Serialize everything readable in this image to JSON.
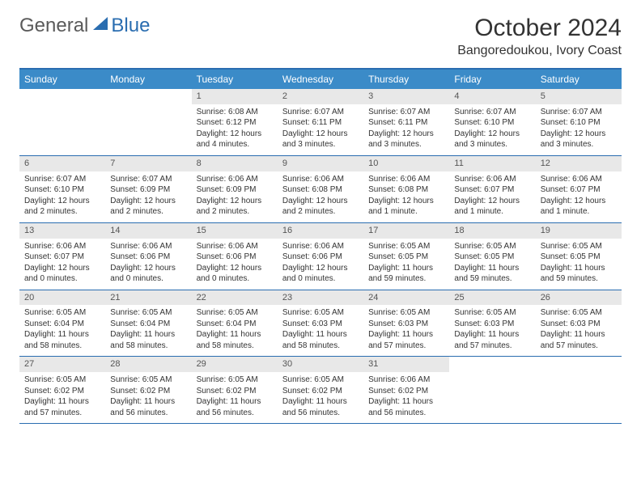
{
  "logo": {
    "text1": "General",
    "text2": "Blue"
  },
  "title": "October 2024",
  "location": "Bangoredoukou, Ivory Coast",
  "colors": {
    "header_bg": "#3b8bc8",
    "header_border": "#2a6db0",
    "daynum_bg": "#e8e8e8",
    "text": "#333333"
  },
  "day_names": [
    "Sunday",
    "Monday",
    "Tuesday",
    "Wednesday",
    "Thursday",
    "Friday",
    "Saturday"
  ],
  "weeks": [
    [
      {
        "n": "",
        "empty": true
      },
      {
        "n": "",
        "empty": true
      },
      {
        "n": "1",
        "sr": "Sunrise: 6:08 AM",
        "ss": "Sunset: 6:12 PM",
        "dl": "Daylight: 12 hours and 4 minutes."
      },
      {
        "n": "2",
        "sr": "Sunrise: 6:07 AM",
        "ss": "Sunset: 6:11 PM",
        "dl": "Daylight: 12 hours and 3 minutes."
      },
      {
        "n": "3",
        "sr": "Sunrise: 6:07 AM",
        "ss": "Sunset: 6:11 PM",
        "dl": "Daylight: 12 hours and 3 minutes."
      },
      {
        "n": "4",
        "sr": "Sunrise: 6:07 AM",
        "ss": "Sunset: 6:10 PM",
        "dl": "Daylight: 12 hours and 3 minutes."
      },
      {
        "n": "5",
        "sr": "Sunrise: 6:07 AM",
        "ss": "Sunset: 6:10 PM",
        "dl": "Daylight: 12 hours and 3 minutes."
      }
    ],
    [
      {
        "n": "6",
        "sr": "Sunrise: 6:07 AM",
        "ss": "Sunset: 6:10 PM",
        "dl": "Daylight: 12 hours and 2 minutes."
      },
      {
        "n": "7",
        "sr": "Sunrise: 6:07 AM",
        "ss": "Sunset: 6:09 PM",
        "dl": "Daylight: 12 hours and 2 minutes."
      },
      {
        "n": "8",
        "sr": "Sunrise: 6:06 AM",
        "ss": "Sunset: 6:09 PM",
        "dl": "Daylight: 12 hours and 2 minutes."
      },
      {
        "n": "9",
        "sr": "Sunrise: 6:06 AM",
        "ss": "Sunset: 6:08 PM",
        "dl": "Daylight: 12 hours and 2 minutes."
      },
      {
        "n": "10",
        "sr": "Sunrise: 6:06 AM",
        "ss": "Sunset: 6:08 PM",
        "dl": "Daylight: 12 hours and 1 minute."
      },
      {
        "n": "11",
        "sr": "Sunrise: 6:06 AM",
        "ss": "Sunset: 6:07 PM",
        "dl": "Daylight: 12 hours and 1 minute."
      },
      {
        "n": "12",
        "sr": "Sunrise: 6:06 AM",
        "ss": "Sunset: 6:07 PM",
        "dl": "Daylight: 12 hours and 1 minute."
      }
    ],
    [
      {
        "n": "13",
        "sr": "Sunrise: 6:06 AM",
        "ss": "Sunset: 6:07 PM",
        "dl": "Daylight: 12 hours and 0 minutes."
      },
      {
        "n": "14",
        "sr": "Sunrise: 6:06 AM",
        "ss": "Sunset: 6:06 PM",
        "dl": "Daylight: 12 hours and 0 minutes."
      },
      {
        "n": "15",
        "sr": "Sunrise: 6:06 AM",
        "ss": "Sunset: 6:06 PM",
        "dl": "Daylight: 12 hours and 0 minutes."
      },
      {
        "n": "16",
        "sr": "Sunrise: 6:06 AM",
        "ss": "Sunset: 6:06 PM",
        "dl": "Daylight: 12 hours and 0 minutes."
      },
      {
        "n": "17",
        "sr": "Sunrise: 6:05 AM",
        "ss": "Sunset: 6:05 PM",
        "dl": "Daylight: 11 hours and 59 minutes."
      },
      {
        "n": "18",
        "sr": "Sunrise: 6:05 AM",
        "ss": "Sunset: 6:05 PM",
        "dl": "Daylight: 11 hours and 59 minutes."
      },
      {
        "n": "19",
        "sr": "Sunrise: 6:05 AM",
        "ss": "Sunset: 6:05 PM",
        "dl": "Daylight: 11 hours and 59 minutes."
      }
    ],
    [
      {
        "n": "20",
        "sr": "Sunrise: 6:05 AM",
        "ss": "Sunset: 6:04 PM",
        "dl": "Daylight: 11 hours and 58 minutes."
      },
      {
        "n": "21",
        "sr": "Sunrise: 6:05 AM",
        "ss": "Sunset: 6:04 PM",
        "dl": "Daylight: 11 hours and 58 minutes."
      },
      {
        "n": "22",
        "sr": "Sunrise: 6:05 AM",
        "ss": "Sunset: 6:04 PM",
        "dl": "Daylight: 11 hours and 58 minutes."
      },
      {
        "n": "23",
        "sr": "Sunrise: 6:05 AM",
        "ss": "Sunset: 6:03 PM",
        "dl": "Daylight: 11 hours and 58 minutes."
      },
      {
        "n": "24",
        "sr": "Sunrise: 6:05 AM",
        "ss": "Sunset: 6:03 PM",
        "dl": "Daylight: 11 hours and 57 minutes."
      },
      {
        "n": "25",
        "sr": "Sunrise: 6:05 AM",
        "ss": "Sunset: 6:03 PM",
        "dl": "Daylight: 11 hours and 57 minutes."
      },
      {
        "n": "26",
        "sr": "Sunrise: 6:05 AM",
        "ss": "Sunset: 6:03 PM",
        "dl": "Daylight: 11 hours and 57 minutes."
      }
    ],
    [
      {
        "n": "27",
        "sr": "Sunrise: 6:05 AM",
        "ss": "Sunset: 6:02 PM",
        "dl": "Daylight: 11 hours and 57 minutes."
      },
      {
        "n": "28",
        "sr": "Sunrise: 6:05 AM",
        "ss": "Sunset: 6:02 PM",
        "dl": "Daylight: 11 hours and 56 minutes."
      },
      {
        "n": "29",
        "sr": "Sunrise: 6:05 AM",
        "ss": "Sunset: 6:02 PM",
        "dl": "Daylight: 11 hours and 56 minutes."
      },
      {
        "n": "30",
        "sr": "Sunrise: 6:05 AM",
        "ss": "Sunset: 6:02 PM",
        "dl": "Daylight: 11 hours and 56 minutes."
      },
      {
        "n": "31",
        "sr": "Sunrise: 6:06 AM",
        "ss": "Sunset: 6:02 PM",
        "dl": "Daylight: 11 hours and 56 minutes."
      },
      {
        "n": "",
        "empty": true
      },
      {
        "n": "",
        "empty": true
      }
    ]
  ]
}
